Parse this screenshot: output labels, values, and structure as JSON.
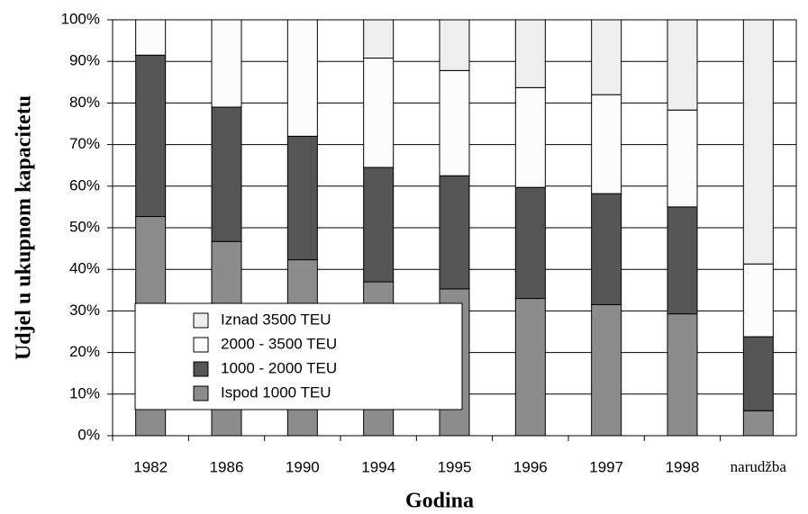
{
  "chart_data": {
    "type": "stacked_bar",
    "xlabel": "Godina",
    "ylabel": "Udjel u ukupnom kapacitetu",
    "categories": [
      "1982",
      "1986",
      "1990",
      "1994",
      "1995",
      "1996",
      "1997",
      "1998",
      "narudžba"
    ],
    "series": [
      {
        "name": "Ispod 1000 TEU",
        "color": "#8c8c8c",
        "values": [
          52.7,
          46.7,
          42.3,
          37,
          35.3,
          33,
          31.5,
          29.3,
          6
        ]
      },
      {
        "name": "1000 - 2000 TEU",
        "color": "#555555",
        "values": [
          38.8,
          32.3,
          29.7,
          27.5,
          27.2,
          26.7,
          26.7,
          25.7,
          17.8
        ]
      },
      {
        "name": "2000 - 3500 TEU",
        "color": "#fcfcfc",
        "values": [
          8.5,
          21,
          28,
          26.3,
          25.3,
          24,
          23.8,
          23.3,
          17.5
        ]
      },
      {
        "name": "Iznad 3500 TEU",
        "color": "#eeeeee",
        "values": [
          0,
          0,
          0,
          9.2,
          12.2,
          16.3,
          18,
          21.7,
          58.7
        ]
      }
    ],
    "ylim": [
      0,
      100
    ],
    "yticks": [
      {
        "value": 0,
        "label": "0%"
      },
      {
        "value": 10,
        "label": "10%"
      },
      {
        "value": 20,
        "label": "20%"
      },
      {
        "value": 30,
        "label": "30%"
      },
      {
        "value": 40,
        "label": "40%"
      },
      {
        "value": 50,
        "label": "50%"
      },
      {
        "value": 60,
        "label": "60%"
      },
      {
        "value": 70,
        "label": "70%"
      },
      {
        "value": 80,
        "label": "80%"
      },
      {
        "value": 90,
        "label": "90%"
      },
      {
        "value": 100,
        "label": "100%"
      }
    ],
    "grid": true
  }
}
